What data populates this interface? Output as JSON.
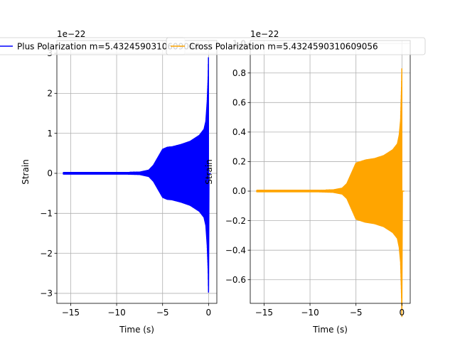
{
  "chart_data": [
    {
      "type": "line",
      "title": "",
      "xlabel": "Time (s)",
      "ylabel": "Strain",
      "offset_text": "1e−22",
      "exponent": -22,
      "xlim": [
        -16.5,
        0.9
      ],
      "ylim": [
        -3.25,
        3.32
      ],
      "xticks": [
        -15,
        -10,
        -5,
        0
      ],
      "xtick_labels": [
        "−15",
        "−10",
        "−5",
        "0"
      ],
      "yticks": [
        -3,
        -2,
        -1,
        0,
        1,
        2,
        3
      ],
      "ytick_labels": [
        "−3",
        "−2",
        "−1",
        "0",
        "1",
        "2",
        "3"
      ],
      "grid": true,
      "legend_position": "upper-center",
      "series": [
        {
          "name": "Plus Polarization m=5.4324590310609056",
          "color": "#0000ff",
          "envelope_time": [
            -15.8,
            -12,
            -9,
            -7.5,
            -6.5,
            -6,
            -5.5,
            -5,
            -4.5,
            -4,
            -3,
            -2,
            -1,
            -0.5,
            -0.3,
            -0.15,
            -0.05,
            0
          ],
          "envelope_amplitude": [
            0.02,
            0.02,
            0.02,
            0.03,
            0.08,
            0.2,
            0.4,
            0.6,
            0.65,
            0.66,
            0.72,
            0.8,
            0.95,
            1.1,
            1.3,
            1.8,
            2.4,
            3.05
          ],
          "envelope_min_at_merger": -2.95
        }
      ]
    },
    {
      "type": "line",
      "title": "",
      "xlabel": "Time (s)",
      "ylabel": "Strain",
      "offset_text": "1e−22",
      "exponent": -22,
      "xlim": [
        -16.5,
        0.9
      ],
      "ylim": [
        -0.76,
        1.02
      ],
      "xticks": [
        -15,
        -10,
        -5,
        0
      ],
      "xtick_labels": [
        "−15",
        "−10",
        "−5",
        "0"
      ],
      "yticks": [
        -0.6,
        -0.4,
        -0.2,
        0.0,
        0.2,
        0.4,
        0.6,
        0.8,
        1.0
      ],
      "ytick_labels": [
        "−0.6",
        "−0.4",
        "−0.2",
        "0.0",
        "0.2",
        "0.4",
        "0.6",
        "0.8",
        "1.0"
      ],
      "grid": true,
      "legend_position": "upper-center",
      "series": [
        {
          "name": "Cross Polarization m=5.4324590310609056",
          "color": "#ffa500",
          "envelope_time": [
            -15.8,
            -12,
            -9,
            -7.5,
            -6.5,
            -6,
            -5.5,
            -5,
            -4.5,
            -4,
            -3,
            -2,
            -1,
            -0.5,
            -0.3,
            -0.15,
            -0.05,
            0
          ],
          "envelope_amplitude": [
            0.005,
            0.005,
            0.005,
            0.008,
            0.02,
            0.05,
            0.12,
            0.19,
            0.2,
            0.21,
            0.22,
            0.24,
            0.28,
            0.32,
            0.38,
            0.48,
            0.7,
            0.87
          ],
          "envelope_min_at_merger": -0.68
        }
      ]
    }
  ]
}
